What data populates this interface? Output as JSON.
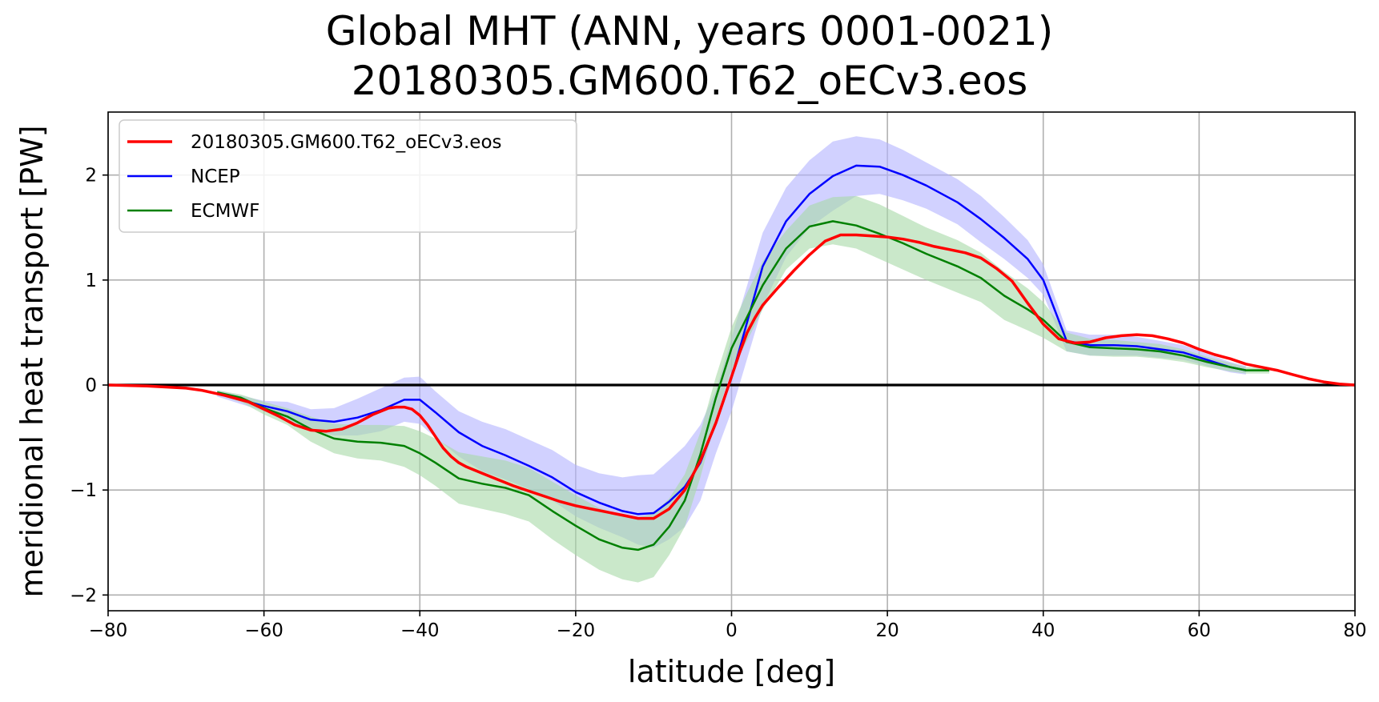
{
  "chart_data": {
    "type": "line",
    "title_line1": "Global MHT (ANN, years 0001-0021)",
    "title_line2": "20180305.GM600.T62_oECv3.eos",
    "xlabel": "latitude [deg]",
    "ylabel": "meridional heat transport [PW]",
    "xlim": [
      -80,
      80
    ],
    "ylim": [
      -2.15,
      2.6
    ],
    "xticks": [
      -80,
      -60,
      -40,
      -20,
      0,
      20,
      40,
      60,
      80
    ],
    "yticks": [
      -2,
      -1,
      0,
      1,
      2
    ],
    "grid": true,
    "legend_position": "upper left",
    "zero_line": 0,
    "colors": {
      "model": "#ff0000",
      "ncep": "#0000ff",
      "ecmwf": "#008000",
      "ncep_band": "#b3b3ff",
      "ecmwf_band": "#a6d8a6"
    },
    "series": [
      {
        "name": "20180305.GM600.T62_oECv3.eos",
        "color": "#ff0000",
        "x": [
          -80,
          -75,
          -70,
          -68,
          -65,
          -62,
          -60,
          -58,
          -56,
          -54,
          -52,
          -50,
          -48,
          -46,
          -44,
          -43,
          -42,
          -41,
          -40,
          -39,
          -38,
          -37,
          -36,
          -35,
          -34,
          -32,
          -30,
          -28,
          -26,
          -24,
          -22,
          -20,
          -18,
          -16,
          -14,
          -12,
          -10,
          -8,
          -6,
          -4,
          -2,
          0,
          1,
          2,
          3,
          4,
          6,
          8,
          10,
          12,
          14,
          16,
          18,
          20,
          22,
          24,
          26,
          28,
          30,
          32,
          34,
          36,
          38,
          40,
          42,
          44,
          46,
          48,
          50,
          52,
          54,
          56,
          58,
          60,
          62,
          64,
          66,
          68,
          70,
          72,
          74,
          76,
          78,
          80
        ],
        "y": [
          0.0,
          -0.01,
          -0.03,
          -0.05,
          -0.1,
          -0.16,
          -0.23,
          -0.3,
          -0.38,
          -0.43,
          -0.44,
          -0.42,
          -0.36,
          -0.28,
          -0.22,
          -0.21,
          -0.21,
          -0.23,
          -0.29,
          -0.38,
          -0.49,
          -0.6,
          -0.68,
          -0.74,
          -0.78,
          -0.84,
          -0.9,
          -0.96,
          -1.01,
          -1.06,
          -1.11,
          -1.15,
          -1.18,
          -1.21,
          -1.24,
          -1.27,
          -1.27,
          -1.18,
          -1.0,
          -0.72,
          -0.36,
          0.08,
          0.3,
          0.5,
          0.64,
          0.76,
          0.93,
          1.09,
          1.24,
          1.37,
          1.43,
          1.43,
          1.42,
          1.41,
          1.39,
          1.36,
          1.32,
          1.29,
          1.26,
          1.21,
          1.11,
          0.99,
          0.78,
          0.58,
          0.44,
          0.4,
          0.41,
          0.45,
          0.47,
          0.48,
          0.47,
          0.44,
          0.4,
          0.34,
          0.29,
          0.25,
          0.2,
          0.17,
          0.14,
          0.1,
          0.06,
          0.03,
          0.01,
          0.0
        ]
      },
      {
        "name": "NCEP",
        "color": "#0000ff",
        "x": [
          -66,
          -63,
          -60,
          -57,
          -54,
          -51,
          -48,
          -45,
          -42,
          -40,
          -38,
          -35,
          -32,
          -29,
          -26,
          -23,
          -20,
          -17,
          -14,
          -12,
          -10,
          -8,
          -6,
          -4,
          -2,
          0,
          2,
          4,
          7,
          10,
          13,
          16,
          19,
          22,
          25,
          29,
          32,
          35,
          38,
          40,
          43,
          46,
          49,
          52,
          55,
          58,
          61,
          64,
          66
        ],
        "y": [
          -0.08,
          -0.14,
          -0.2,
          -0.25,
          -0.33,
          -0.35,
          -0.31,
          -0.24,
          -0.14,
          -0.14,
          -0.26,
          -0.45,
          -0.58,
          -0.67,
          -0.77,
          -0.88,
          -1.02,
          -1.12,
          -1.2,
          -1.23,
          -1.22,
          -1.11,
          -0.97,
          -0.74,
          -0.36,
          0.07,
          0.6,
          1.13,
          1.56,
          1.82,
          1.99,
          2.09,
          2.08,
          2.0,
          1.9,
          1.74,
          1.58,
          1.4,
          1.2,
          1.0,
          0.42,
          0.38,
          0.38,
          0.37,
          0.34,
          0.31,
          0.24,
          0.17,
          0.14
        ]
      },
      {
        "name": "ECMWF",
        "color": "#008000",
        "x": [
          -66,
          -63,
          -60,
          -57,
          -54,
          -51,
          -48,
          -45,
          -42,
          -40,
          -38,
          -35,
          -32,
          -29,
          -26,
          -23,
          -20,
          -17,
          -14,
          -12,
          -10,
          -8,
          -6,
          -4,
          -2,
          0,
          2,
          4,
          7,
          10,
          13,
          16,
          19,
          22,
          25,
          29,
          32,
          35,
          38,
          40,
          43,
          46,
          49,
          52,
          55,
          58,
          61,
          64,
          66,
          69
        ],
        "y": [
          -0.07,
          -0.12,
          -0.22,
          -0.3,
          -0.42,
          -0.51,
          -0.54,
          -0.55,
          -0.58,
          -0.65,
          -0.74,
          -0.89,
          -0.94,
          -0.98,
          -1.05,
          -1.2,
          -1.34,
          -1.47,
          -1.55,
          -1.57,
          -1.52,
          -1.35,
          -1.1,
          -0.66,
          -0.12,
          0.35,
          0.65,
          0.95,
          1.3,
          1.51,
          1.56,
          1.52,
          1.44,
          1.35,
          1.25,
          1.13,
          1.02,
          0.85,
          0.72,
          0.62,
          0.41,
          0.36,
          0.35,
          0.34,
          0.32,
          0.28,
          0.22,
          0.17,
          0.14,
          0.14
        ]
      }
    ],
    "bands": [
      {
        "name": "NCEP",
        "color": "#b3b3ff",
        "x": [
          -66,
          -63,
          -60,
          -57,
          -54,
          -51,
          -48,
          -45,
          -42,
          -40,
          -38,
          -35,
          -32,
          -29,
          -26,
          -23,
          -20,
          -17,
          -14,
          -12,
          -10,
          -8,
          -6,
          -4,
          -2,
          0,
          2,
          4,
          7,
          10,
          13,
          16,
          19,
          22,
          25,
          29,
          32,
          35,
          38,
          40,
          43,
          46,
          49,
          52,
          55,
          58,
          61,
          64,
          66
        ],
        "upper": [
          -0.05,
          -0.1,
          -0.15,
          -0.16,
          -0.23,
          -0.22,
          -0.13,
          -0.03,
          0.07,
          0.08,
          -0.06,
          -0.25,
          -0.35,
          -0.42,
          -0.52,
          -0.62,
          -0.76,
          -0.84,
          -0.88,
          -0.86,
          -0.85,
          -0.72,
          -0.58,
          -0.38,
          -0.05,
          0.45,
          0.95,
          1.45,
          1.88,
          2.14,
          2.32,
          2.37,
          2.34,
          2.24,
          2.12,
          1.96,
          1.8,
          1.6,
          1.38,
          1.15,
          0.52,
          0.48,
          0.48,
          0.46,
          0.42,
          0.38,
          0.3,
          0.22,
          0.18
        ],
        "lower": [
          -0.11,
          -0.18,
          -0.25,
          -0.34,
          -0.43,
          -0.48,
          -0.48,
          -0.44,
          -0.35,
          -0.37,
          -0.5,
          -0.68,
          -0.82,
          -0.9,
          -0.99,
          -1.1,
          -1.25,
          -1.36,
          -1.45,
          -1.52,
          -1.55,
          -1.47,
          -1.35,
          -1.1,
          -0.65,
          -0.25,
          0.25,
          0.75,
          1.22,
          1.5,
          1.66,
          1.8,
          1.82,
          1.76,
          1.68,
          1.53,
          1.36,
          1.2,
          1.02,
          0.86,
          0.32,
          0.28,
          0.28,
          0.28,
          0.26,
          0.24,
          0.18,
          0.12,
          0.1
        ]
      },
      {
        "name": "ECMWF",
        "color": "#a6d8a6",
        "x": [
          -66,
          -63,
          -60,
          -57,
          -54,
          -51,
          -48,
          -45,
          -42,
          -40,
          -38,
          -35,
          -32,
          -29,
          -26,
          -23,
          -20,
          -17,
          -14,
          -12,
          -10,
          -8,
          -6,
          -4,
          -2,
          0,
          2,
          4,
          7,
          10,
          13,
          16,
          19,
          22,
          25,
          29,
          32,
          35,
          38,
          40,
          43,
          46,
          49,
          52,
          55,
          58,
          61,
          64,
          66,
          69
        ],
        "upper": [
          -0.05,
          -0.09,
          -0.16,
          -0.22,
          -0.3,
          -0.37,
          -0.38,
          -0.38,
          -0.39,
          -0.44,
          -0.51,
          -0.64,
          -0.68,
          -0.72,
          -0.79,
          -0.92,
          -1.05,
          -1.17,
          -1.24,
          -1.26,
          -1.22,
          -1.08,
          -0.85,
          -0.45,
          0.08,
          0.55,
          0.88,
          1.18,
          1.47,
          1.71,
          1.79,
          1.8,
          1.72,
          1.61,
          1.5,
          1.38,
          1.26,
          1.08,
          0.92,
          0.79,
          0.5,
          0.44,
          0.43,
          0.41,
          0.39,
          0.34,
          0.27,
          0.21,
          0.17,
          0.17
        ],
        "lower": [
          -0.09,
          -0.16,
          -0.28,
          -0.38,
          -0.54,
          -0.65,
          -0.7,
          -0.72,
          -0.78,
          -0.86,
          -0.96,
          -1.13,
          -1.18,
          -1.23,
          -1.3,
          -1.47,
          -1.62,
          -1.76,
          -1.85,
          -1.88,
          -1.83,
          -1.62,
          -1.35,
          -0.88,
          -0.32,
          0.15,
          0.42,
          0.72,
          1.1,
          1.3,
          1.34,
          1.3,
          1.2,
          1.1,
          1.0,
          0.88,
          0.79,
          0.62,
          0.52,
          0.45,
          0.32,
          0.28,
          0.27,
          0.27,
          0.25,
          0.22,
          0.17,
          0.13,
          0.11,
          0.11
        ]
      }
    ]
  }
}
